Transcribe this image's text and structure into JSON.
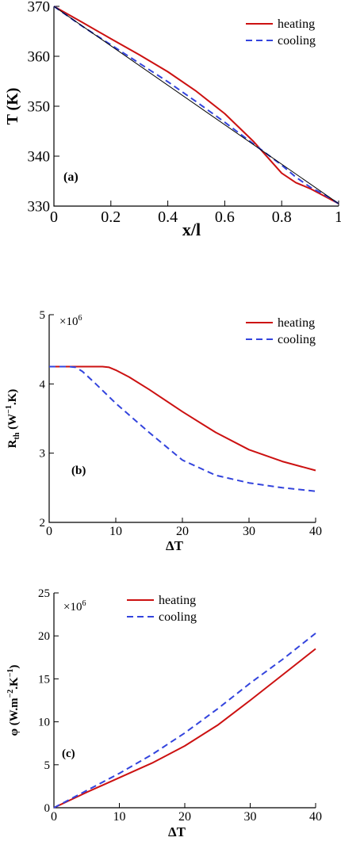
{
  "colors": {
    "heating": "#cc1111",
    "cooling": "#3344dd",
    "axis": "#000000",
    "reference": "#000000"
  },
  "chart_data": [
    {
      "type": "line",
      "panel_label": "(a)",
      "xlabel": "x/l",
      "ylabel": "T (K)",
      "xlim": [
        0,
        1
      ],
      "ylim": [
        330,
        370
      ],
      "xticks": [
        0,
        0.2,
        0.4,
        0.6,
        0.8,
        1
      ],
      "yticks": [
        330,
        340,
        350,
        360,
        370
      ],
      "xtick_labels": [
        "0",
        "0.2",
        "0.4",
        "0.6",
        "0.8",
        "1"
      ],
      "ytick_labels": [
        "330",
        "340",
        "350",
        "360",
        "370"
      ],
      "legend": "top-right",
      "grid": false,
      "series": [
        {
          "name": "heating",
          "style": "solid",
          "color": "#cc1111",
          "x": [
            0,
            0.1,
            0.2,
            0.3,
            0.4,
            0.5,
            0.6,
            0.7,
            0.8,
            0.85,
            0.9,
            0.95,
            1
          ],
          "y": [
            370,
            366.8,
            363.5,
            360.3,
            356.9,
            353,
            348.5,
            343,
            336.6,
            334.7,
            333.5,
            332,
            330.5
          ]
        },
        {
          "name": "cooling",
          "style": "dashed",
          "color": "#3344dd",
          "x": [
            0,
            0.1,
            0.2,
            0.3,
            0.4,
            0.5,
            0.6,
            0.7,
            0.8,
            0.85,
            0.9,
            0.95,
            1
          ],
          "y": [
            370,
            366,
            362.3,
            358.6,
            354.9,
            350.9,
            346.8,
            342.5,
            338.2,
            335.8,
            333.8,
            332.3,
            330.5
          ]
        },
        {
          "name": "",
          "style": "thin",
          "color": "#000000",
          "x": [
            0,
            1
          ],
          "y": [
            370,
            330.5
          ]
        }
      ]
    },
    {
      "type": "line",
      "panel_label": "(b)",
      "multiplier": "×10",
      "multiplier_exp": "6",
      "xlabel": "ΔT",
      "ylabel_main": "R",
      "ylabel_sub": "th",
      "ylabel_rest": " (W",
      "ylabel_sup": "−1",
      "ylabel_end": ".K)",
      "xlim": [
        0,
        40
      ],
      "ylim": [
        2,
        5
      ],
      "xticks": [
        0,
        10,
        20,
        30,
        40
      ],
      "yticks": [
        2,
        3,
        4,
        5
      ],
      "xtick_labels": [
        "0",
        "10",
        "20",
        "30",
        "40"
      ],
      "ytick_labels": [
        "2",
        "3",
        "4",
        "5"
      ],
      "legend": "top-right",
      "grid": false,
      "series": [
        {
          "name": "heating",
          "style": "solid",
          "color": "#cc1111",
          "x": [
            0,
            4,
            8,
            9,
            10,
            12,
            15,
            20,
            25,
            30,
            35,
            40
          ],
          "y": [
            4.25,
            4.25,
            4.25,
            4.24,
            4.2,
            4.1,
            3.92,
            3.6,
            3.3,
            3.05,
            2.88,
            2.75
          ]
        },
        {
          "name": "cooling",
          "style": "dashed",
          "color": "#3344dd",
          "x": [
            0,
            3,
            4,
            5,
            7,
            10,
            15,
            20,
            25,
            30,
            35,
            40
          ],
          "y": [
            4.25,
            4.25,
            4.24,
            4.18,
            4.0,
            3.72,
            3.3,
            2.9,
            2.68,
            2.57,
            2.5,
            2.45
          ]
        }
      ]
    },
    {
      "type": "line",
      "panel_label": "(c)",
      "multiplier": "×10",
      "multiplier_exp": "6",
      "xlabel": "ΔT",
      "ylabel_main": "φ",
      "ylabel_sub": "",
      "ylabel_rest": " (W.m",
      "ylabel_sup": "−2",
      "ylabel_end": ".K",
      "ylabel_sup2": "−1",
      "ylabel_end2": ")",
      "xlim": [
        0,
        40
      ],
      "ylim": [
        0,
        25
      ],
      "xticks": [
        0,
        10,
        20,
        30,
        40
      ],
      "yticks": [
        0,
        5,
        10,
        15,
        20,
        25
      ],
      "xtick_labels": [
        "0",
        "10",
        "20",
        "30",
        "40"
      ],
      "ytick_labels": [
        "0",
        "5",
        "10",
        "15",
        "20",
        "25"
      ],
      "legend": "top",
      "grid": false,
      "series": [
        {
          "name": "heating",
          "style": "solid",
          "color": "#cc1111",
          "x": [
            0,
            5,
            10,
            15,
            20,
            25,
            30,
            35,
            40
          ],
          "y": [
            0,
            1.8,
            3.5,
            5.2,
            7.2,
            9.6,
            12.5,
            15.5,
            18.5
          ]
        },
        {
          "name": "cooling",
          "style": "dashed",
          "color": "#3344dd",
          "x": [
            0,
            5,
            10,
            15,
            20,
            25,
            30,
            35,
            40
          ],
          "y": [
            0,
            2.0,
            4.0,
            6.2,
            8.7,
            11.5,
            14.5,
            17.3,
            20.3
          ]
        }
      ]
    }
  ]
}
